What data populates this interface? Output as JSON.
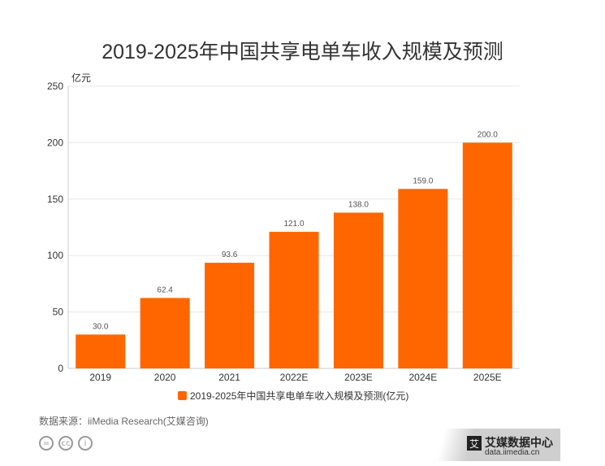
{
  "title": "2019-2025年中国共享电单车收入规模及预测",
  "chart_data": {
    "type": "bar",
    "title": "2019-2025年中国共享电单车收入规模及预测",
    "ylabel": "亿元",
    "categories": [
      "2019",
      "2020",
      "2021",
      "2022E",
      "2023E",
      "2024E",
      "2025E"
    ],
    "series": [
      {
        "name": "2019-2025年中国共享电单车收入规模及预测(亿元)",
        "values": [
          30.0,
          62.4,
          93.6,
          121.0,
          138.0,
          159.0,
          200.0
        ],
        "labels": [
          "30.0",
          "62.4",
          "93.6",
          "121.0",
          "138.0",
          "159.0",
          "200.0"
        ],
        "color": "#ff6600"
      }
    ],
    "yticks": [
      "0",
      "50",
      "100",
      "150",
      "200",
      "250"
    ],
    "ylim": [
      0,
      250
    ],
    "grid": true,
    "legend": "bottom"
  },
  "legend_label": "2019-2025年中国共享电单车收入规模及预测(亿元)",
  "source": "数据来源：iiMedia Research(艾媒咨询)",
  "license_icons": [
    "=",
    "cc",
    "i"
  ],
  "brand": {
    "mark": "艾",
    "name": "艾媒数据中心",
    "url": "data.iimedia.cn"
  }
}
